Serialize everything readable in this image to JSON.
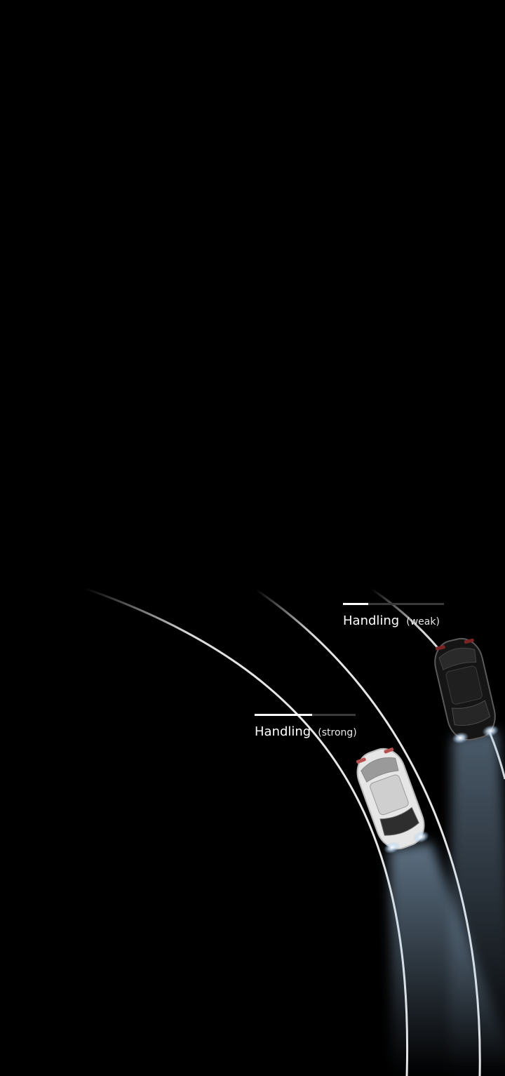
{
  "meters": [
    {
      "label": "Handling",
      "qualifier": "(weak)",
      "level_fraction": 0.25
    },
    {
      "label": "Handling",
      "qualifier": "(strong)",
      "level_fraction": 0.57
    }
  ],
  "colors": {
    "background": "#000000",
    "track": "#3a3a3a",
    "fill": "#ffffff",
    "white_car": "#e8e8e8",
    "black_car": "#141414",
    "headlight": "#9fc4e6"
  },
  "icons": {
    "white_car": "car-topdown-white-icon",
    "black_car": "car-topdown-black-icon"
  }
}
